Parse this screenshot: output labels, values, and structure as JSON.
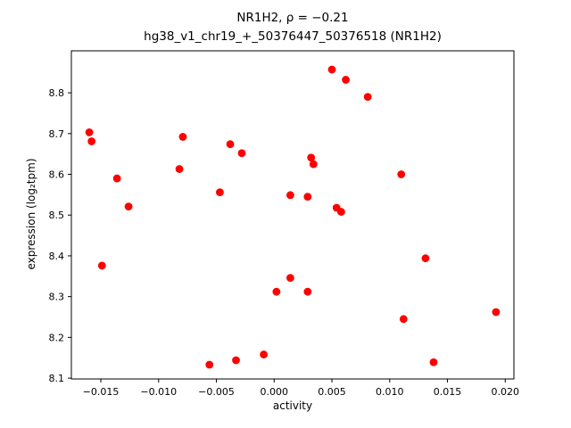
{
  "chart_data": {
    "type": "scatter",
    "title_line1": "NR1H2, ρ = −0.21",
    "title_line2": "hg38_v1_chr19_+_50376447_50376518 (NR1H2)",
    "xlabel": "activity",
    "ylabel": "expression (log₂tpm)",
    "xlim": [
      -0.01755,
      0.02075
    ],
    "ylim": [
      8.098,
      8.903
    ],
    "xticks": [
      -0.015,
      -0.01,
      -0.005,
      0.0,
      0.005,
      0.01,
      0.015,
      0.02
    ],
    "xtick_labels": [
      "−0.015",
      "−0.010",
      "−0.005",
      "0.000",
      "0.005",
      "0.010",
      "0.015",
      "0.020"
    ],
    "yticks": [
      8.1,
      8.2,
      8.3,
      8.4,
      8.5,
      8.6,
      8.7,
      8.8
    ],
    "ytick_labels": [
      "8.1",
      "8.2",
      "8.3",
      "8.4",
      "8.5",
      "8.6",
      "8.7",
      "8.8"
    ],
    "point_color": "#ff0000",
    "axis_color": "#000000",
    "grid": false,
    "legend": null,
    "points": [
      {
        "x": -0.016,
        "y": 8.703
      },
      {
        "x": -0.0158,
        "y": 8.681
      },
      {
        "x": -0.0149,
        "y": 8.376
      },
      {
        "x": -0.0136,
        "y": 8.59
      },
      {
        "x": -0.0126,
        "y": 8.521
      },
      {
        "x": -0.0082,
        "y": 8.613
      },
      {
        "x": -0.0079,
        "y": 8.692
      },
      {
        "x": -0.0056,
        "y": 8.133
      },
      {
        "x": -0.0047,
        "y": 8.556
      },
      {
        "x": -0.0038,
        "y": 8.674
      },
      {
        "x": -0.0033,
        "y": 8.144
      },
      {
        "x": -0.0028,
        "y": 8.652
      },
      {
        "x": -0.0009,
        "y": 8.158
      },
      {
        "x": 0.0002,
        "y": 8.312
      },
      {
        "x": 0.0014,
        "y": 8.549
      },
      {
        "x": 0.0014,
        "y": 8.346
      },
      {
        "x": 0.0029,
        "y": 8.545
      },
      {
        "x": 0.0029,
        "y": 8.312
      },
      {
        "x": 0.0032,
        "y": 8.641
      },
      {
        "x": 0.0034,
        "y": 8.625
      },
      {
        "x": 0.005,
        "y": 8.857
      },
      {
        "x": 0.0054,
        "y": 8.518
      },
      {
        "x": 0.0058,
        "y": 8.508
      },
      {
        "x": 0.0062,
        "y": 8.832
      },
      {
        "x": 0.0081,
        "y": 8.79
      },
      {
        "x": 0.011,
        "y": 8.6
      },
      {
        "x": 0.0112,
        "y": 8.245
      },
      {
        "x": 0.0131,
        "y": 8.394
      },
      {
        "x": 0.0138,
        "y": 8.139
      },
      {
        "x": 0.0192,
        "y": 8.262
      }
    ]
  }
}
